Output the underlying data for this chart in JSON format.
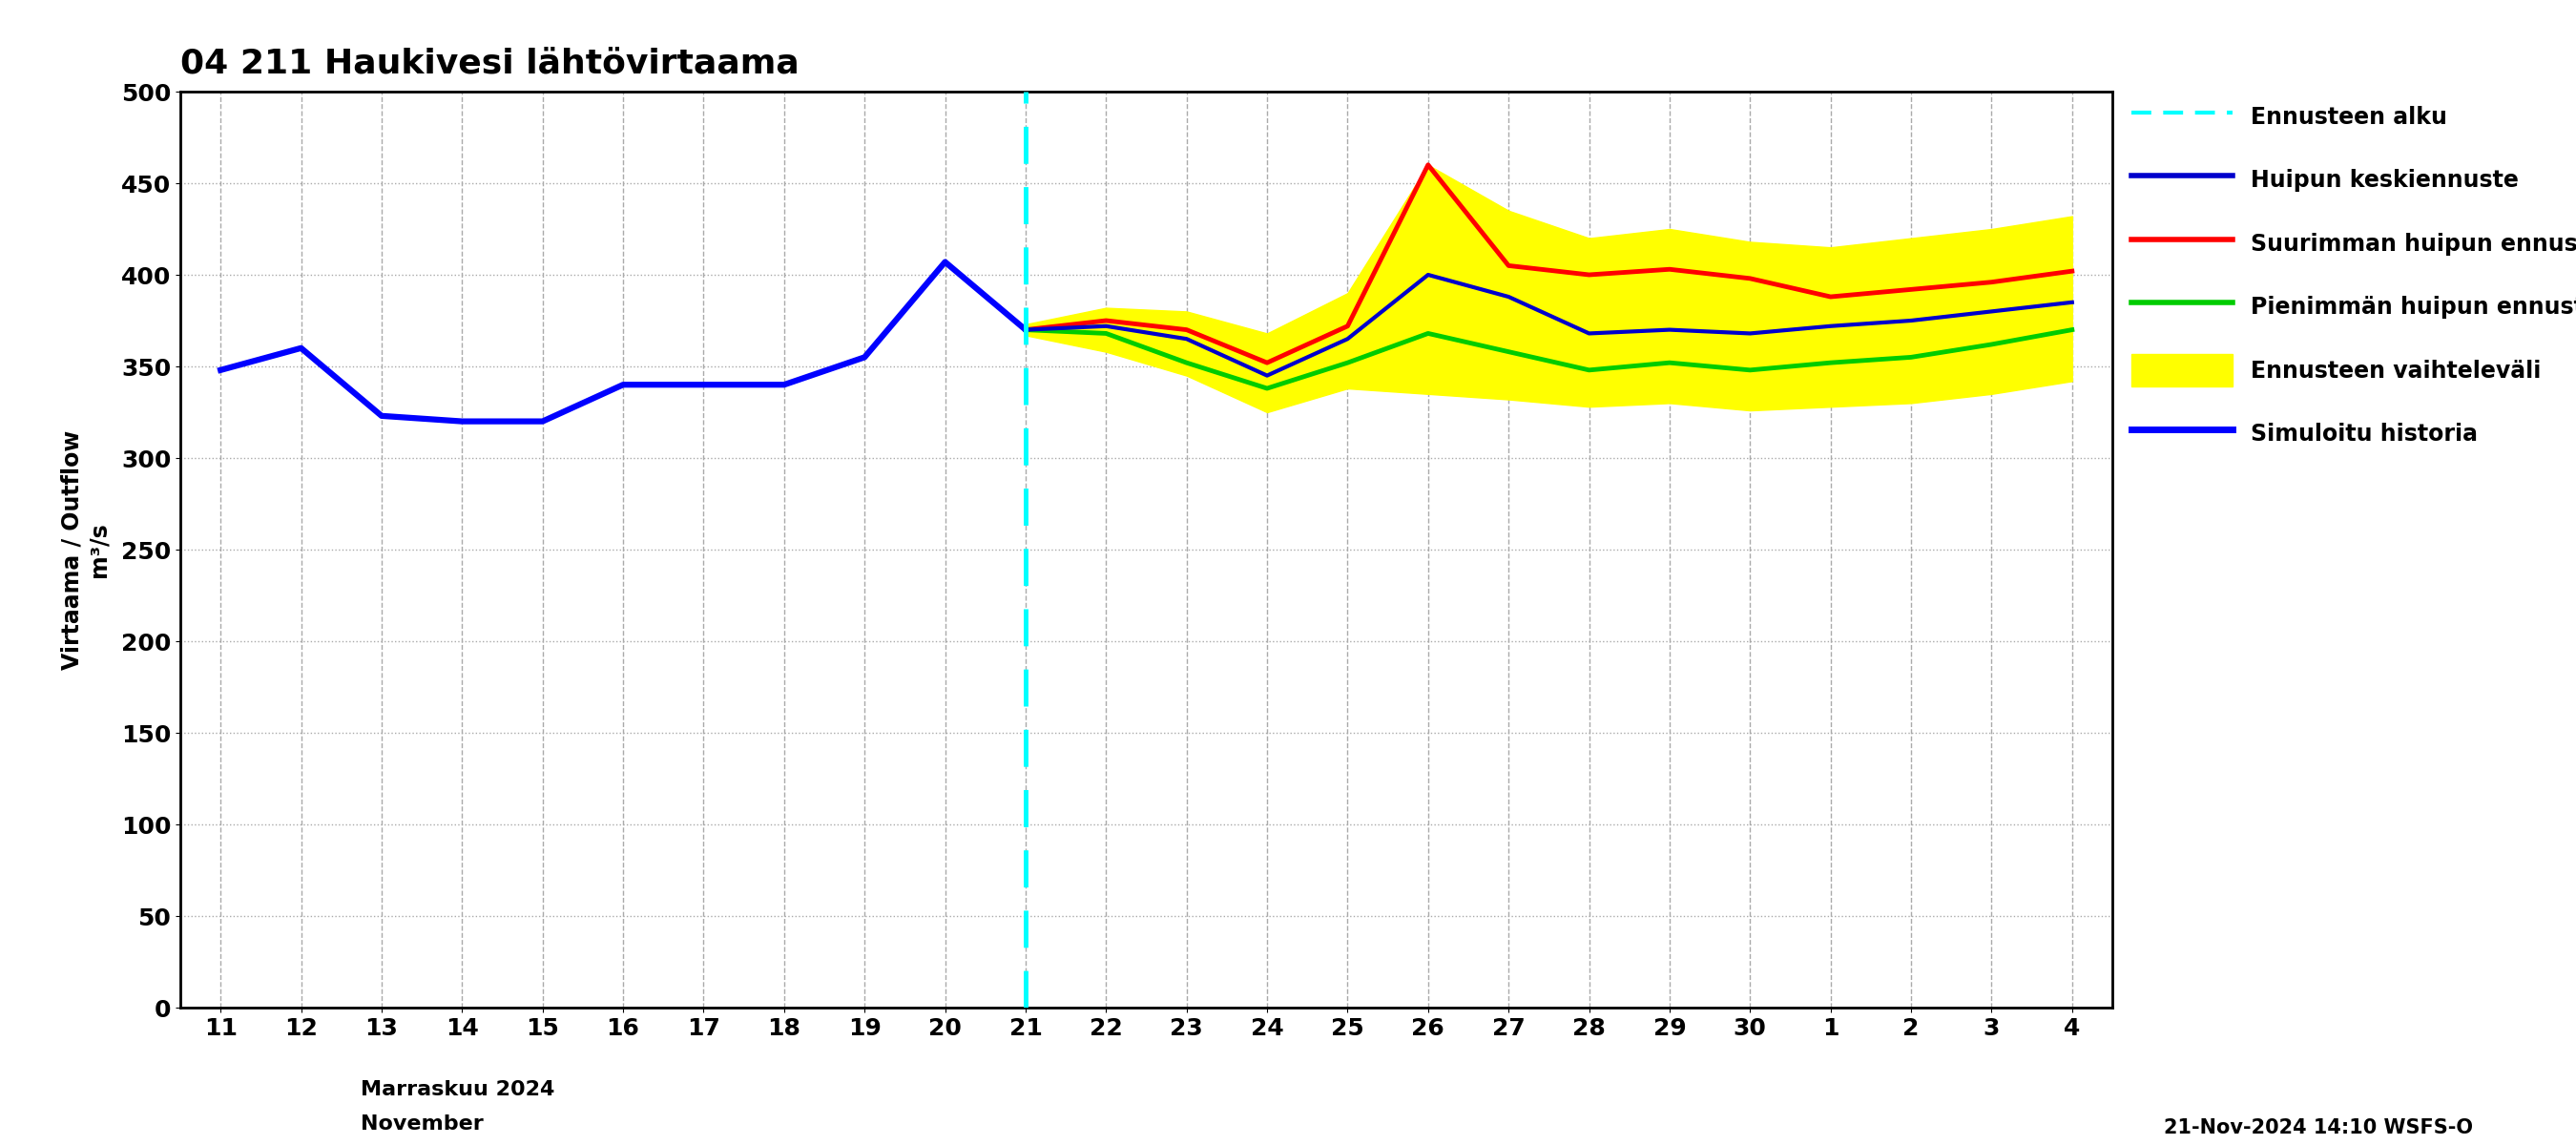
{
  "title": "04 211 Haukivesi lähtövirtaama",
  "ylabel": "Virtaama / Outflow\nm³/s",
  "xlabel_line1": "Marraskuu 2024",
  "xlabel_line2": "November",
  "timestamp": "21-Nov-2024 14:10 WSFS-O",
  "ylim": [
    0,
    500
  ],
  "yticks": [
    0,
    50,
    100,
    150,
    200,
    250,
    300,
    350,
    400,
    450,
    500
  ],
  "vline_color": "#00FFFF",
  "background_color": "#ffffff",
  "grid_color_v": "#aaaaaa",
  "grid_color_h": "#aaaaaa",
  "november_days": [
    11,
    12,
    13,
    14,
    15,
    16,
    17,
    18,
    19,
    20,
    21,
    22,
    23,
    24,
    25,
    26,
    27,
    28,
    29,
    30
  ],
  "december_days": [
    1,
    2,
    3,
    4
  ],
  "history_nov_days": [
    11,
    12,
    13,
    14,
    15,
    16,
    17,
    18,
    19,
    20,
    21
  ],
  "history_y": [
    348,
    360,
    323,
    320,
    320,
    340,
    340,
    340,
    355,
    407,
    370
  ],
  "forecast_nov_days": [
    21,
    22,
    23,
    24,
    25,
    26,
    27,
    28,
    29,
    30
  ],
  "forecast_dec_days": [
    1,
    2,
    3,
    4
  ],
  "mean_forecast_y": [
    370,
    372,
    365,
    345,
    365,
    400,
    388,
    368,
    370,
    368,
    372,
    375,
    380,
    385
  ],
  "max_forecast_y": [
    370,
    375,
    370,
    352,
    372,
    460,
    405,
    400,
    403,
    398,
    388,
    392,
    396,
    402
  ],
  "min_forecast_y": [
    370,
    368,
    352,
    338,
    352,
    368,
    358,
    348,
    352,
    348,
    352,
    355,
    362,
    370
  ],
  "band_upper_y": [
    373,
    382,
    380,
    368,
    390,
    460,
    435,
    420,
    425,
    418,
    415,
    420,
    425,
    432
  ],
  "band_lower_y": [
    367,
    358,
    345,
    325,
    338,
    335,
    332,
    328,
    330,
    326,
    328,
    330,
    335,
    342
  ],
  "history_color": "#0000FF",
  "mean_forecast_color": "#0000CC",
  "max_forecast_color": "#FF0000",
  "min_forecast_color": "#00CC00",
  "band_color": "#FFFF00",
  "cyan_color": "#00FFFF",
  "history_linewidth": 4.5,
  "forecast_linewidth_max": 3.5,
  "forecast_linewidth_min": 3.5,
  "forecast_linewidth_mean": 3.0
}
